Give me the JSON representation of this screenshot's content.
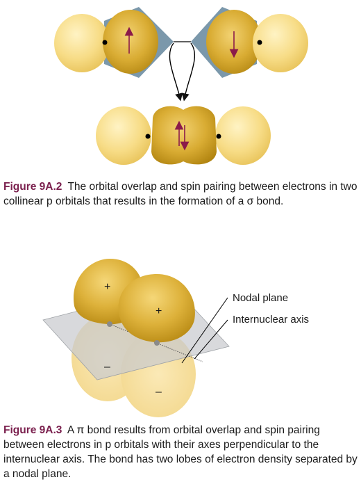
{
  "figure_a": {
    "label": "Figure 9A.2",
    "caption": "The orbital overlap and spin pairing between electrons in two collinear p orbitals that results in the formation of a σ bond."
  },
  "figure_b": {
    "label": "Figure 9A.3",
    "caption": "A π bond results from orbital overlap and spin pairing between electrons in p orbitals with their axes perpendicular to the internuclear axis. The bond has two lobes of electron density separated by a nodal plane.",
    "labels": {
      "nodal_plane": "Nodal plane",
      "internuclear_axis": "Internuclear axis"
    },
    "signs": {
      "upper": "+",
      "lower": "–"
    }
  },
  "colors": {
    "lobe_light": "#f6d77a",
    "lobe_dark": "#c99a1c",
    "spin_arrow": "#8b1a4a",
    "plane": "#c9cbce",
    "wedge": "#7b98ab"
  }
}
